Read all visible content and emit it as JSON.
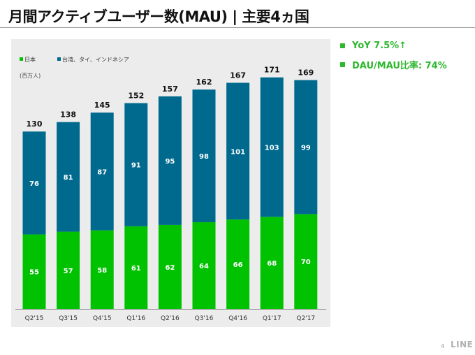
{
  "slide": {
    "title": "月間アクティブユーザー数(MAU) | 主要4ヵ国",
    "page_number": "4",
    "logo": "LINE"
  },
  "bullets": [
    {
      "text": "YoY 7.5%↑"
    },
    {
      "text": "DAU/MAU比率: 74%"
    }
  ],
  "colors": {
    "japan": "#00c200",
    "overseas": "#006a8e",
    "accent": "#2db82d"
  },
  "chart_data": {
    "type": "bar",
    "stacked": true,
    "unit_label": "(百万人)",
    "categories": [
      "Q2'15",
      "Q3'15",
      "Q4'15",
      "Q1'16",
      "Q2'16",
      "Q3'16",
      "Q4'16",
      "Q1'17",
      "Q2'17"
    ],
    "series": [
      {
        "name": "日本",
        "color": "#00c200",
        "values": [
          55,
          57,
          58,
          61,
          62,
          64,
          66,
          68,
          70
        ]
      },
      {
        "name": "台湾、タイ、インドネシア",
        "color": "#006a8e",
        "values": [
          76,
          81,
          87,
          91,
          95,
          98,
          101,
          103,
          99
        ]
      }
    ],
    "totals": [
      130,
      138,
      145,
      152,
      157,
      162,
      167,
      171,
      169
    ],
    "ylim": [
      0,
      175
    ],
    "legend_position": "top-left",
    "grid": false
  }
}
